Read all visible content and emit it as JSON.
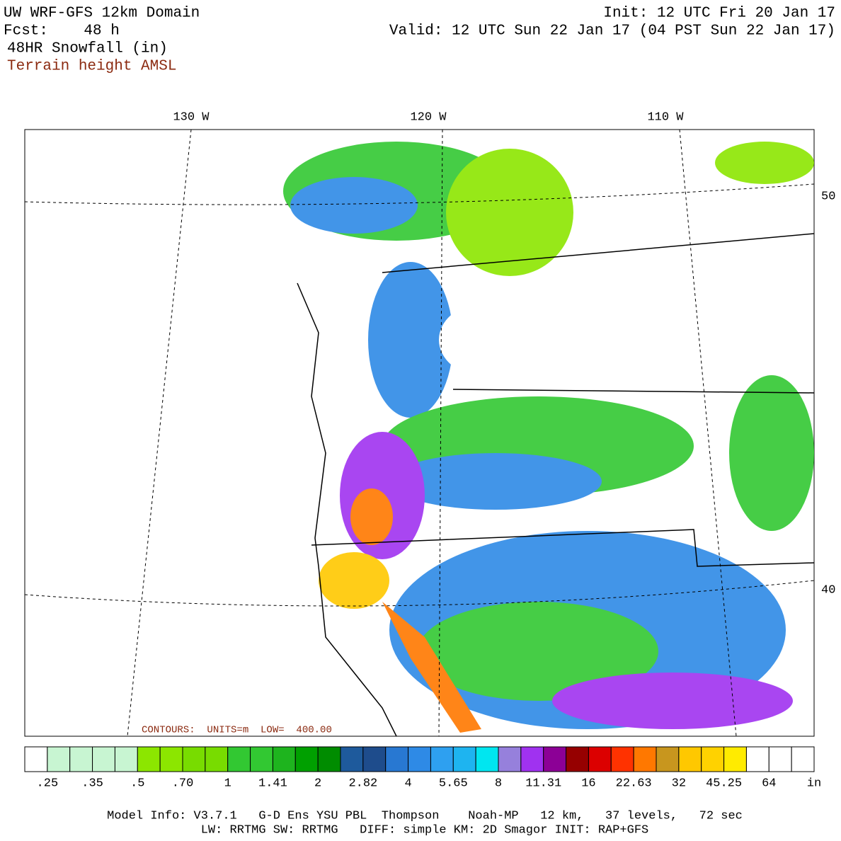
{
  "header": {
    "title": "UW WRF-GFS 12km Domain",
    "forecast": "Fcst:    48 h",
    "field": "48HR Snowfall (in)",
    "overlay": "Terrain height AMSL",
    "init": "Init: 12 UTC Fri 20 Jan 17",
    "valid": "Valid: 12 UTC Sun 22 Jan 17 (04 PST Sun 22 Jan 17)"
  },
  "map": {
    "lon_labels": [
      "130 W",
      "120 W",
      "110 W"
    ],
    "lat_labels": [
      "50",
      "40"
    ],
    "contour_note": "CONTOURS:  UNITS=m  LOW=  400.00"
  },
  "colorbar": {
    "colors": [
      "#ffffff",
      "#c8f5d2",
      "#c8f5d2",
      "#c8f5d2",
      "#c8f5d2",
      "#8ce600",
      "#8ce600",
      "#78dc00",
      "#78dc00",
      "#32c832",
      "#32c832",
      "#1eb41e",
      "#00a000",
      "#008c00",
      "#1e5a9c",
      "#1e4c8c",
      "#2878d2",
      "#2e8ae6",
      "#2ea0f0",
      "#1eb4f0",
      "#00e6f0",
      "#9680dc",
      "#a032f0",
      "#8c0096",
      "#960000",
      "#dc0000",
      "#ff3200",
      "#ff7800",
      "#c8961e",
      "#ffc800",
      "#ffd200",
      "#ffeb00",
      "#ffffff",
      "#ffffff",
      "#ffffff"
    ],
    "labels": [
      ".25",
      ".35",
      ".5",
      ".70",
      "1",
      "1.41",
      "2",
      "2.82",
      "4",
      "5.65",
      "8",
      "11.31",
      "16",
      "22.63",
      "32",
      "45.25",
      "64"
    ],
    "unit": "in"
  },
  "footer": {
    "line1": "Model Info: V3.7.1   G-D Ens YSU PBL  Thompson    Noah-MP   12 km,   37 levels,   72 sec",
    "line2": "LW: RRTMG SW: RRTMG   DIFF: simple KM: 2D Smagor INIT: RAP+GFS"
  }
}
